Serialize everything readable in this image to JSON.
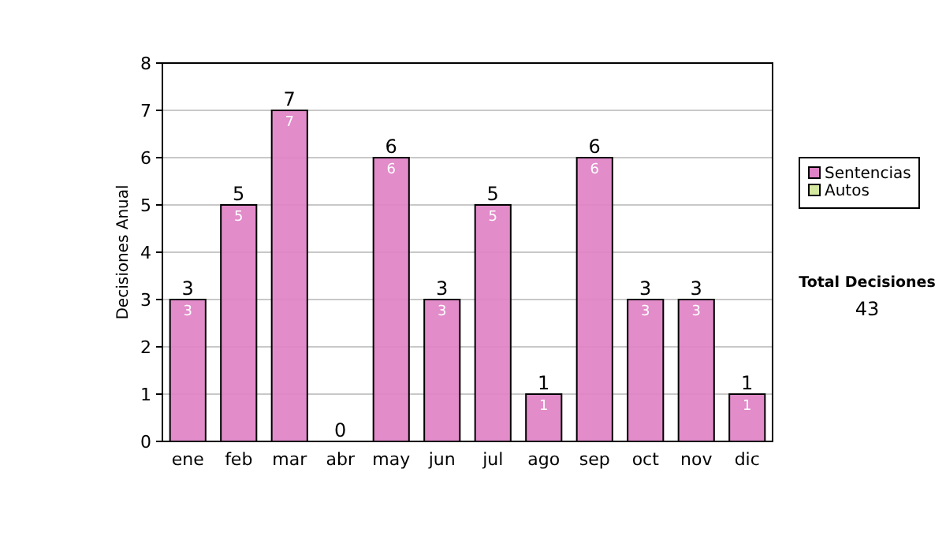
{
  "chart_data": {
    "type": "bar",
    "stacked": true,
    "ylabel": "Decisiones Anual",
    "categories": [
      "ene",
      "feb",
      "mar",
      "abr",
      "may",
      "jun",
      "jul",
      "ago",
      "sep",
      "oct",
      "nov",
      "dic"
    ],
    "series": [
      {
        "name": "Sentencias",
        "color": "#df82c6",
        "values": [
          3,
          5,
          7,
          0,
          6,
          3,
          5,
          1,
          6,
          3,
          3,
          1
        ],
        "value_labels": [
          "3",
          "5",
          "7",
          null,
          "6",
          "3",
          "5",
          "1",
          "6",
          "3",
          "3",
          "1"
        ]
      },
      {
        "name": "Autos",
        "color": "#d5e8a0",
        "values": [
          0,
          0,
          0,
          0,
          0,
          0,
          0,
          0,
          0,
          0,
          0,
          0
        ]
      }
    ],
    "totals": [
      "3",
      "5",
      "7",
      "0",
      "6",
      "3",
      "5",
      "1",
      "6",
      "3",
      "3",
      "1"
    ],
    "ylim": [
      0,
      8
    ],
    "yticks": [
      0,
      1,
      2,
      3,
      4,
      5,
      6,
      7,
      8
    ],
    "grid": "y",
    "legend": "right",
    "annotations": [
      "Total Decisiones",
      "43"
    ]
  }
}
